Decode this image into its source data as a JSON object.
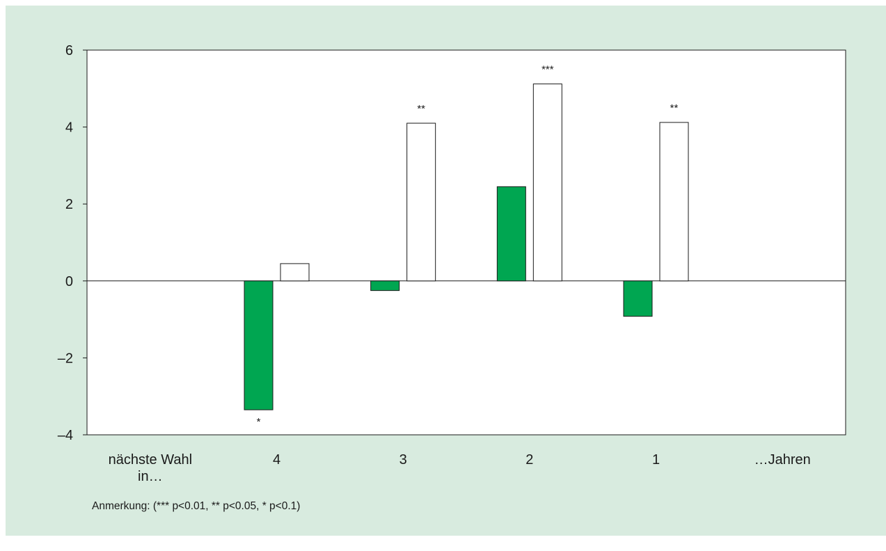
{
  "chart_data": {
    "type": "bar",
    "categories": [
      "nächste Wahl in…",
      "4",
      "3",
      "2",
      "1",
      "…Jahren"
    ],
    "series": [
      {
        "values": [
          null,
          -3.35,
          -0.25,
          2.45,
          -0.92,
          null
        ],
        "color": "#00a651"
      },
      {
        "values": [
          null,
          0.45,
          4.1,
          5.12,
          4.12,
          null
        ],
        "color": "#ffffff"
      }
    ],
    "significance": [
      [
        null,
        "*",
        "",
        "",
        "",
        null
      ],
      [
        null,
        "",
        "**",
        "***",
        "**",
        null
      ]
    ],
    "yticks": [
      6,
      4,
      2,
      0,
      -2,
      -4
    ],
    "ytick_labels": [
      "6",
      "4",
      "2",
      "0",
      "–2",
      "–4"
    ],
    "ylim": [
      -4,
      6
    ],
    "grid": false,
    "title": "",
    "xlabel": "",
    "ylabel": ""
  },
  "note": "Anmerkung: (*** p<0.01, ** p<0.05, * p<0.1)",
  "colors": {
    "background": "#d8ebdf",
    "plot": "#ffffff",
    "green": "#00a651"
  }
}
